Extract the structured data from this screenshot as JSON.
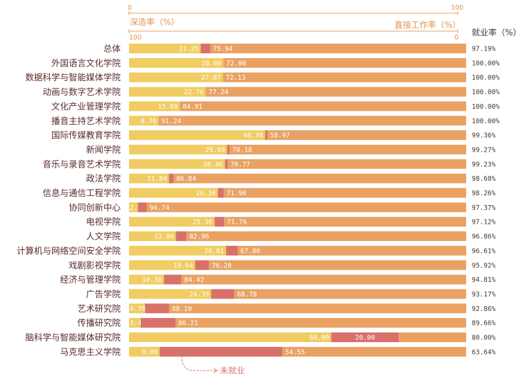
{
  "chart_data": {
    "type": "bar",
    "orientation": "horizontal",
    "stacked": true,
    "categories": [
      "总体",
      "外国语言文化学院",
      "数据科学与智能媒体学院",
      "动画与数字艺术学院",
      "文化产业管理学院",
      "播音主持艺术学院",
      "国际传媒教育学院",
      "新闻学院",
      "音乐与录音艺术学院",
      "政法学院",
      "信息与通信工程学院",
      "协同创新中心",
      "电视学院",
      "人文学院",
      "计算机与网络空间安全学院",
      "戏剧影视学院",
      "经济与管理学院",
      "广告学院",
      "艺术研究院",
      "传播研究院",
      "脑科学与智能媒体研究院",
      "马克思主义学院"
    ],
    "series": [
      {
        "name": "深造率（%）",
        "color": "#f0cc62",
        "values": [
          21.25,
          28.0,
          27.87,
          22.76,
          15.09,
          8.76,
          40.38,
          29.09,
          28.46,
          11.84,
          26.36,
          2.63,
          25.36,
          13.9,
          28.81,
          19.64,
          10.38,
          24.39,
          4.76,
          3.45,
          60.0,
          9.09
        ],
        "labels": [
          "21.25",
          "28.00",
          "27.87",
          "22.76",
          "15.09",
          "8.76",
          "40.38",
          "29.09",
          "28.46",
          "11.84",
          "26.36",
          "2.6",
          "25.36",
          "13.90",
          "28.81",
          "19.64",
          "10.38",
          "24.39",
          "4.76",
          "3.45",
          "60.00",
          "9.09"
        ]
      },
      {
        "name": "未就业",
        "color": "#d7716a",
        "values": [
          2.81,
          0,
          0,
          0,
          0,
          0,
          0.64,
          0.73,
          0.77,
          1.32,
          1.74,
          2.63,
          2.88,
          3.14,
          3.39,
          4.08,
          5.19,
          6.83,
          7.14,
          10.34,
          20.0,
          36.36
        ],
        "labels": [
          "",
          "",
          "",
          "",
          "",
          "",
          "",
          "",
          "",
          "",
          "",
          "",
          "",
          "",
          "",
          "",
          "",
          "",
          "",
          "",
          "20.00",
          ""
        ]
      },
      {
        "name": "直接工作率（%）",
        "color": "#e9a263",
        "values": [
          75.94,
          72.0,
          72.13,
          77.24,
          84.91,
          91.24,
          58.97,
          70.18,
          70.77,
          86.84,
          71.9,
          94.74,
          71.76,
          82.96,
          67.8,
          76.28,
          84.42,
          68.78,
          88.1,
          86.21,
          20.0,
          54.55
        ],
        "labels": [
          "75.94",
          "72.00",
          "72.13",
          "77.24",
          "84.91",
          "91.24",
          "58.97",
          "70.18",
          "70.77",
          "86.84",
          "71.90",
          "94.74",
          "71.76",
          "82.96",
          "67.80",
          "76.28",
          "84.42",
          "68.78",
          "88.10",
          "86.21",
          "",
          "54.55"
        ]
      }
    ],
    "employment_rate_header": "就业率（%）",
    "employment_rates": [
      "97.19%",
      "100.00%",
      "100.00%",
      "100.00%",
      "100.00%",
      "100.00%",
      "99.36%",
      "99.27%",
      "99.23%",
      "98.68%",
      "98.26%",
      "97.37%",
      "97.12%",
      "96.86%",
      "96.61%",
      "95.92%",
      "94.81%",
      "93.17%",
      "92.86%",
      "89.66%",
      "80.00%",
      "63.64%"
    ],
    "top_axis": {
      "title": "深造率（%）",
      "min_label": "0",
      "max_label": "100",
      "xlim": [
        0,
        100
      ]
    },
    "bottom_axis": {
      "title": "直接工作率（%）",
      "min_label": "100",
      "max_label": "0",
      "xlim": [
        100,
        0
      ]
    },
    "annotation": "未就业"
  }
}
